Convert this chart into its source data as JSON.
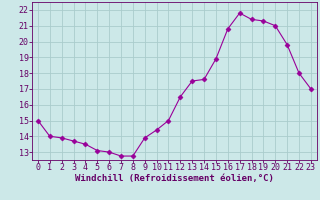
{
  "x": [
    0,
    1,
    2,
    3,
    4,
    5,
    6,
    7,
    8,
    9,
    10,
    11,
    12,
    13,
    14,
    15,
    16,
    17,
    18,
    19,
    20,
    21,
    22,
    23
  ],
  "y": [
    15.0,
    14.0,
    13.9,
    13.7,
    13.5,
    13.1,
    13.0,
    12.75,
    12.75,
    13.9,
    14.4,
    15.0,
    16.5,
    17.5,
    17.6,
    18.9,
    20.8,
    21.8,
    21.4,
    21.3,
    21.0,
    19.8,
    18.0,
    17.0
  ],
  "line_color": "#990099",
  "marker": "D",
  "marker_size": 2.5,
  "bg_color": "#cce8e8",
  "grid_color": "#aacccc",
  "xlabel": "Windchill (Refroidissement éolien,°C)",
  "xlim": [
    -0.5,
    23.5
  ],
  "ylim": [
    12.5,
    22.5
  ],
  "yticks": [
    13,
    14,
    15,
    16,
    17,
    18,
    19,
    20,
    21,
    22
  ],
  "xticks": [
    0,
    1,
    2,
    3,
    4,
    5,
    6,
    7,
    8,
    9,
    10,
    11,
    12,
    13,
    14,
    15,
    16,
    17,
    18,
    19,
    20,
    21,
    22,
    23
  ],
  "tick_color": "#660066",
  "label_color": "#660066",
  "label_fontsize": 6.5,
  "tick_fontsize": 6.0
}
